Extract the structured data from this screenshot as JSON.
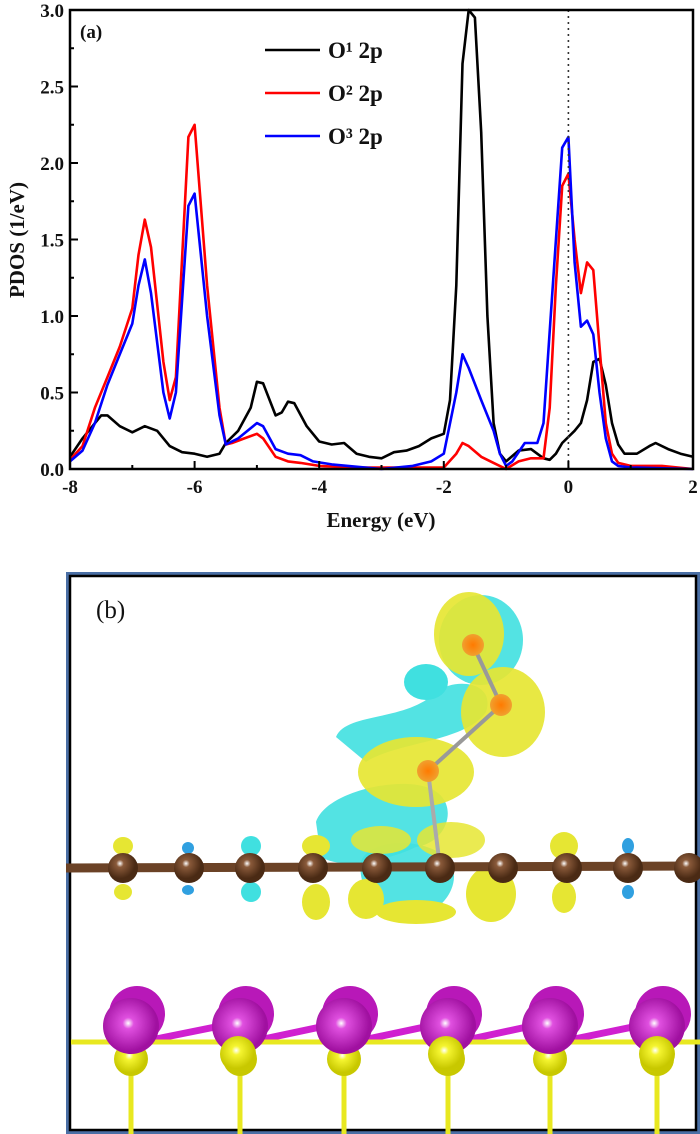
{
  "chart_data": {
    "type": "line",
    "panel_label": "(a)",
    "xlabel": "Energy (eV)",
    "ylabel": "PDOS (1/eV)",
    "xlim": [
      -8,
      2
    ],
    "ylim": [
      0,
      3.0
    ],
    "xticks": [
      "-8",
      "-6",
      "-4",
      "-2",
      "0",
      "2"
    ],
    "yticks": [
      "0.0",
      "0.5",
      "1.0",
      "1.5",
      "2.0",
      "2.5",
      "3.0"
    ],
    "grid": false,
    "legend_position": "top-center",
    "fermi_level_line": {
      "x": 0,
      "style": "dotted"
    },
    "series": [
      {
        "name": "O¹ 2p",
        "color": "#000000",
        "x": [
          -8,
          -7.8,
          -7.5,
          -7.4,
          -7.2,
          -7.0,
          -6.8,
          -6.6,
          -6.4,
          -6.2,
          -6.0,
          -5.8,
          -5.6,
          -5.5,
          -5.3,
          -5.1,
          -5.0,
          -4.9,
          -4.7,
          -4.6,
          -4.5,
          -4.4,
          -4.2,
          -4.0,
          -3.8,
          -3.6,
          -3.4,
          -3.2,
          -3.0,
          -2.8,
          -2.6,
          -2.4,
          -2.2,
          -2.0,
          -1.9,
          -1.8,
          -1.7,
          -1.6,
          -1.5,
          -1.4,
          -1.3,
          -1.2,
          -1.1,
          -1.0,
          -0.8,
          -0.6,
          -0.4,
          -0.3,
          -0.2,
          -0.1,
          0.1,
          0.2,
          0.3,
          0.4,
          0.5,
          0.6,
          0.7,
          0.8,
          0.9,
          1.1,
          1.3,
          1.4,
          1.6,
          1.8,
          2.0
        ],
        "y": [
          0.08,
          0.2,
          0.35,
          0.35,
          0.28,
          0.24,
          0.28,
          0.25,
          0.15,
          0.11,
          0.1,
          0.08,
          0.1,
          0.17,
          0.25,
          0.4,
          0.57,
          0.56,
          0.35,
          0.37,
          0.44,
          0.43,
          0.28,
          0.18,
          0.16,
          0.17,
          0.1,
          0.08,
          0.07,
          0.11,
          0.12,
          0.15,
          0.2,
          0.23,
          0.45,
          1.2,
          2.65,
          3.0,
          2.95,
          2.2,
          1.0,
          0.3,
          0.1,
          0.05,
          0.12,
          0.13,
          0.07,
          0.06,
          0.1,
          0.17,
          0.25,
          0.3,
          0.45,
          0.7,
          0.72,
          0.55,
          0.3,
          0.16,
          0.1,
          0.1,
          0.15,
          0.17,
          0.13,
          0.1,
          0.08
        ]
      },
      {
        "name": "O² 2p",
        "color": "#ff0000",
        "x": [
          -8,
          -7.8,
          -7.6,
          -7.4,
          -7.2,
          -7.0,
          -6.9,
          -6.8,
          -6.7,
          -6.5,
          -6.4,
          -6.3,
          -6.1,
          -6.0,
          -5.8,
          -5.6,
          -5.5,
          -5.4,
          -5.2,
          -5.0,
          -4.9,
          -4.7,
          -4.5,
          -4.3,
          -4.0,
          -3.5,
          -2.0,
          -1.8,
          -1.7,
          -1.6,
          -1.4,
          -1.2,
          -1.0,
          -0.8,
          -0.6,
          -0.4,
          -0.3,
          -0.2,
          -0.1,
          0.0,
          0.1,
          0.2,
          0.3,
          0.4,
          0.5,
          0.6,
          0.7,
          0.8,
          1.0,
          1.5,
          2.0
        ],
        "y": [
          0.06,
          0.15,
          0.4,
          0.6,
          0.8,
          1.05,
          1.4,
          1.63,
          1.45,
          0.7,
          0.45,
          0.6,
          2.17,
          2.25,
          1.2,
          0.4,
          0.16,
          0.17,
          0.2,
          0.23,
          0.2,
          0.08,
          0.05,
          0.04,
          0.02,
          0.01,
          0.01,
          0.1,
          0.17,
          0.15,
          0.08,
          0.04,
          0.0,
          0.05,
          0.07,
          0.07,
          0.4,
          1.2,
          1.85,
          1.93,
          1.5,
          1.15,
          1.35,
          1.3,
          0.8,
          0.3,
          0.1,
          0.04,
          0.02,
          0.02,
          0.0
        ]
      },
      {
        "name": "O³ 2p",
        "color": "#0000ff",
        "x": [
          -8,
          -7.8,
          -7.6,
          -7.4,
          -7.2,
          -7.0,
          -6.9,
          -6.8,
          -6.7,
          -6.5,
          -6.4,
          -6.3,
          -6.1,
          -6.0,
          -5.8,
          -5.6,
          -5.5,
          -5.3,
          -5.0,
          -4.9,
          -4.7,
          -4.5,
          -4.3,
          -4.1,
          -3.8,
          -3.0,
          -2.5,
          -2.2,
          -2.0,
          -1.8,
          -1.7,
          -1.6,
          -1.4,
          -1.2,
          -1.1,
          -1.0,
          -0.9,
          -0.7,
          -0.5,
          -0.4,
          -0.3,
          -0.1,
          0.0,
          0.1,
          0.2,
          0.3,
          0.4,
          0.5,
          0.6,
          0.7,
          0.8,
          1.0,
          2.0
        ],
        "y": [
          0.05,
          0.12,
          0.3,
          0.55,
          0.75,
          0.95,
          1.2,
          1.37,
          1.15,
          0.5,
          0.33,
          0.5,
          1.72,
          1.8,
          1.0,
          0.35,
          0.16,
          0.2,
          0.3,
          0.28,
          0.13,
          0.1,
          0.09,
          0.05,
          0.03,
          0.0,
          0.02,
          0.05,
          0.1,
          0.5,
          0.75,
          0.66,
          0.45,
          0.25,
          0.1,
          0.02,
          0.05,
          0.17,
          0.17,
          0.3,
          0.9,
          2.1,
          2.17,
          1.35,
          0.93,
          0.97,
          0.88,
          0.5,
          0.2,
          0.05,
          0.02,
          0.01,
          0.0
        ]
      }
    ]
  },
  "structure_panel": {
    "label": "(b)",
    "colors": {
      "oxygen": "#ff8c1a",
      "carbon": "#6b4226",
      "molybdenum": "#c81ec8",
      "sulfur": "#f0f020",
      "charge_accumulation": "#e6e633",
      "charge_depletion": "#40e0e0",
      "frame": "#4a6fa5"
    }
  }
}
